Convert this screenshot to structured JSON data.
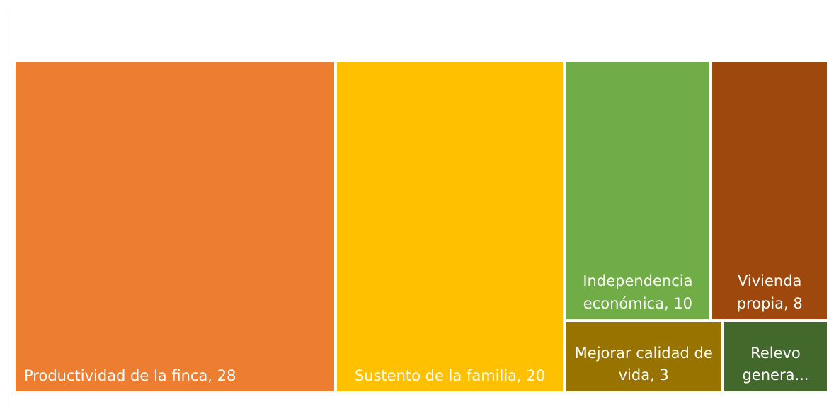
{
  "chart_data": {
    "type": "treemap",
    "labels": [
      "Productividad de la finca, 28",
      "Sustento de la familia, 20",
      "Independencia económica, 10",
      "Vivienda propia, 8",
      "Mejorar calidad de vida, 3",
      "Relevo genera..."
    ],
    "values": [
      28,
      20,
      10,
      8,
      3,
      2
    ],
    "colors": [
      "#ED7D31",
      "#FFC000",
      "#70AD47",
      "#9E480E",
      "#997300",
      "#43682B"
    ]
  }
}
